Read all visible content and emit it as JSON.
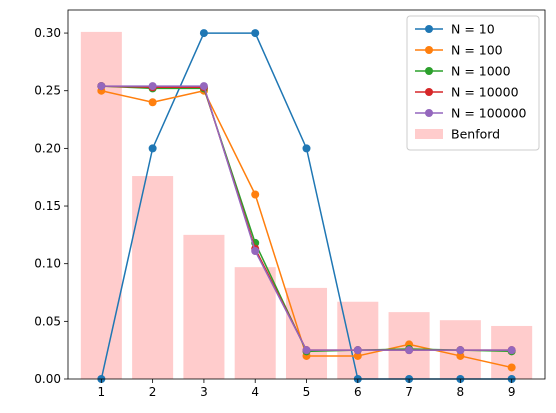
{
  "chart_data": {
    "type": "line",
    "categories": [
      "1",
      "2",
      "3",
      "4",
      "5",
      "6",
      "7",
      "8",
      "9"
    ],
    "ylim": [
      0,
      0.32
    ],
    "yticks": [
      0.0,
      0.05,
      0.1,
      0.15,
      0.2,
      0.25,
      0.3
    ],
    "ytick_labels": [
      "0.00",
      "0.05",
      "0.10",
      "0.15",
      "0.20",
      "0.25",
      "0.30"
    ],
    "legend_position": "top-right",
    "grid": false,
    "bars": {
      "name": "Benford",
      "color": "#ffcccc",
      "values": [
        0.301,
        0.176,
        0.125,
        0.097,
        0.079,
        0.067,
        0.058,
        0.051,
        0.046
      ]
    },
    "series": [
      {
        "name": "N = 10",
        "color": "#1f77b4",
        "values": [
          0.0,
          0.2,
          0.3,
          0.3,
          0.2,
          0.0,
          0.0,
          0.0,
          0.0
        ]
      },
      {
        "name": "N = 100",
        "color": "#ff7f0e",
        "values": [
          0.25,
          0.24,
          0.25,
          0.16,
          0.02,
          0.02,
          0.03,
          0.02,
          0.01
        ]
      },
      {
        "name": "N = 1000",
        "color": "#2ca02c",
        "values": [
          0.254,
          0.252,
          0.252,
          0.118,
          0.024,
          0.025,
          0.026,
          0.025,
          0.024
        ]
      },
      {
        "name": "N = 10000",
        "color": "#d62728",
        "values": [
          0.254,
          0.253,
          0.253,
          0.113,
          0.025,
          0.025,
          0.025,
          0.025,
          0.025
        ]
      },
      {
        "name": "N = 100000",
        "color": "#9467bd",
        "values": [
          0.254,
          0.254,
          0.254,
          0.111,
          0.025,
          0.025,
          0.025,
          0.025,
          0.025
        ]
      }
    ]
  }
}
